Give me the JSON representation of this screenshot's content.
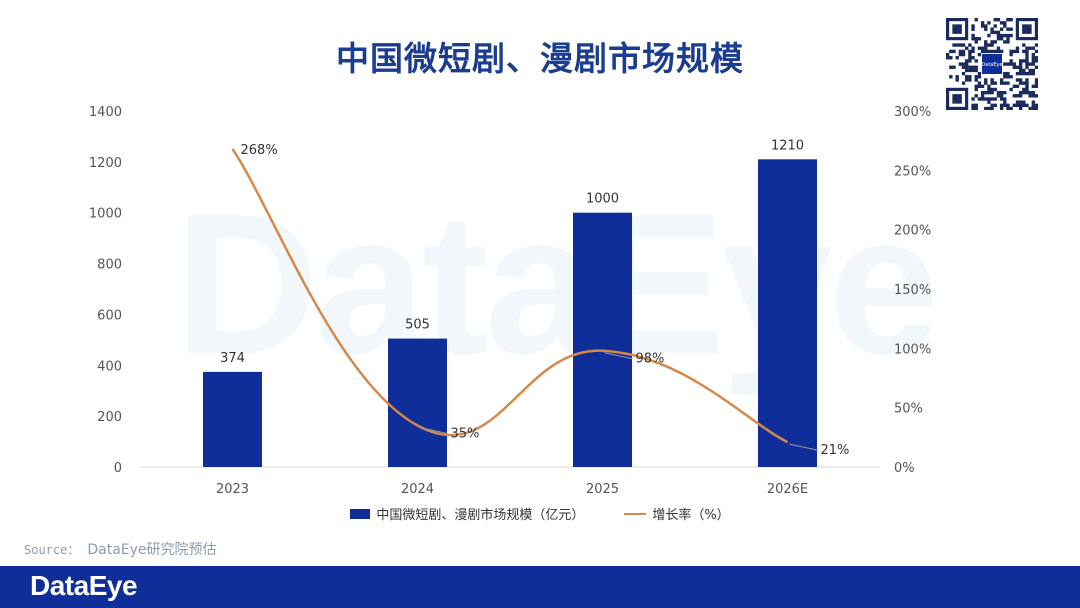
{
  "title": "中国微短剧、漫剧市场规模",
  "watermark": "DataEye",
  "qr": {
    "center_text": "DataEye"
  },
  "source": {
    "prefix": "Source：",
    "text": "DataEye研究院预估"
  },
  "footer": {
    "logo": "DataEye"
  },
  "colors": {
    "bar": "#0f2e9a",
    "line": "#d4894a",
    "title": "#1a3d8f",
    "footer": "#0f2e9a"
  },
  "chart_data": {
    "type": "bar",
    "title": "中国微短剧、漫剧市场规模",
    "categories": [
      "2023",
      "2024",
      "2025",
      "2026E"
    ],
    "series": [
      {
        "name": "中国微短剧、漫剧市场规模（亿元）",
        "type": "bar",
        "axis": "left",
        "values": [
          374,
          505,
          1000,
          1210
        ],
        "labels": [
          "374",
          "505",
          "1000",
          "1210"
        ]
      },
      {
        "name": "增长率（%）",
        "type": "line",
        "axis": "right",
        "values": [
          268,
          35,
          98,
          21
        ],
        "labels": [
          "268%",
          "35%",
          "98%",
          "21%"
        ]
      }
    ],
    "y_left": {
      "min": 0,
      "max": 1400,
      "ticks": [
        "0",
        "200",
        "400",
        "600",
        "800",
        "1000",
        "1200",
        "1400"
      ]
    },
    "y_right": {
      "min": 0,
      "max": 300,
      "ticks": [
        "0%",
        "50%",
        "100%",
        "150%",
        "200%",
        "250%",
        "300%"
      ]
    },
    "grid": false,
    "legend": "bottom-center"
  }
}
